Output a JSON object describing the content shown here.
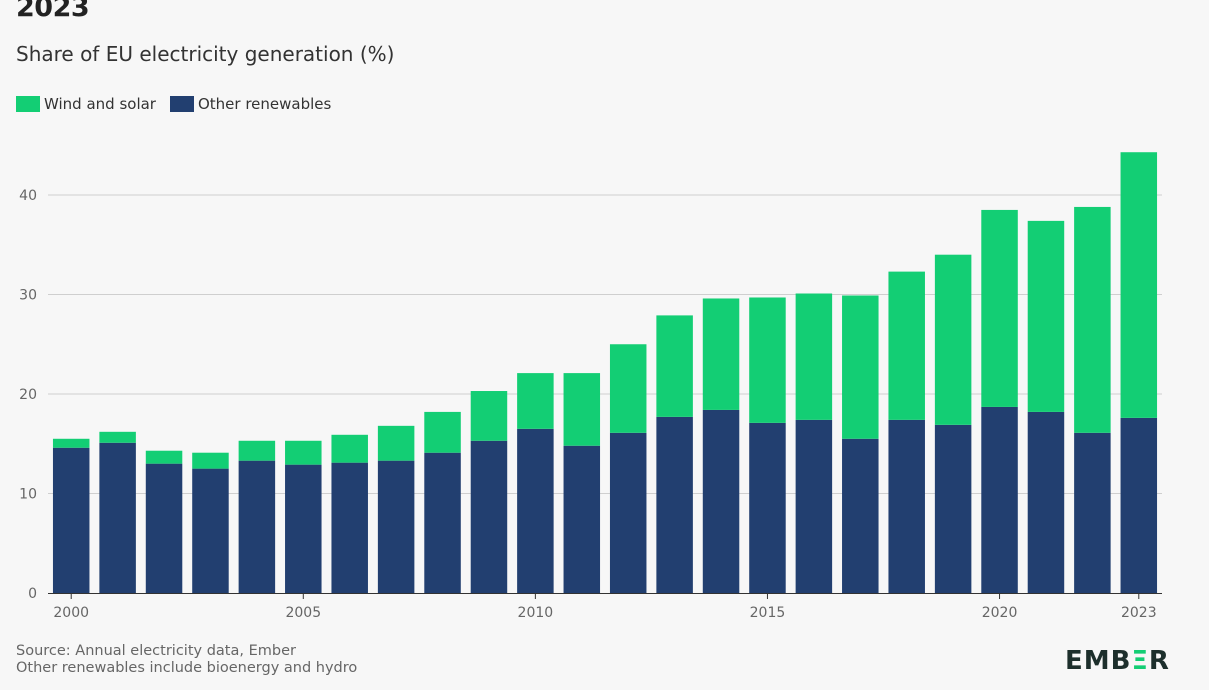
{
  "header": {
    "title": "2023",
    "subtitle": "Share of EU electricity generation (%)"
  },
  "legend": [
    {
      "label": "Wind and solar",
      "color": "#13ce74"
    },
    {
      "label": "Other renewables",
      "color": "#223f70"
    }
  ],
  "footer": {
    "source_line1": "Source: Annual electricity data, Ember",
    "source_line2": "Other renewables include bioenergy and hydro",
    "logo_left": "EMB",
    "logo_accent": "Ξ",
    "logo_right": "R"
  },
  "chart_data": {
    "type": "bar",
    "stacked": true,
    "categories": [
      "2000",
      "2001",
      "2002",
      "2003",
      "2004",
      "2005",
      "2006",
      "2007",
      "2008",
      "2009",
      "2010",
      "2011",
      "2012",
      "2013",
      "2014",
      "2015",
      "2016",
      "2017",
      "2018",
      "2019",
      "2020",
      "2021",
      "2022",
      "2023"
    ],
    "x_tick_labels": [
      "2000",
      "2005",
      "2010",
      "2015",
      "2020",
      "2023"
    ],
    "y_ticks": [
      0,
      10,
      20,
      30,
      40
    ],
    "ylim": [
      0,
      45
    ],
    "grid": true,
    "legend_position": "top-left",
    "series": [
      {
        "name": "Other renewables",
        "color": "#223f70",
        "values": [
          14.6,
          15.1,
          13.0,
          12.5,
          13.3,
          12.9,
          13.1,
          13.3,
          14.1,
          15.3,
          16.5,
          14.8,
          16.1,
          17.7,
          18.4,
          17.1,
          17.4,
          15.5,
          17.4,
          16.9,
          18.7,
          18.2,
          16.1,
          17.6
        ]
      },
      {
        "name": "Wind and solar",
        "color": "#13ce74",
        "values": [
          0.9,
          1.1,
          1.3,
          1.6,
          2.0,
          2.4,
          2.8,
          3.5,
          4.1,
          5.0,
          5.6,
          7.3,
          8.9,
          10.2,
          11.2,
          12.6,
          12.7,
          14.4,
          14.9,
          17.1,
          19.8,
          19.2,
          22.7,
          26.7
        ]
      }
    ]
  }
}
